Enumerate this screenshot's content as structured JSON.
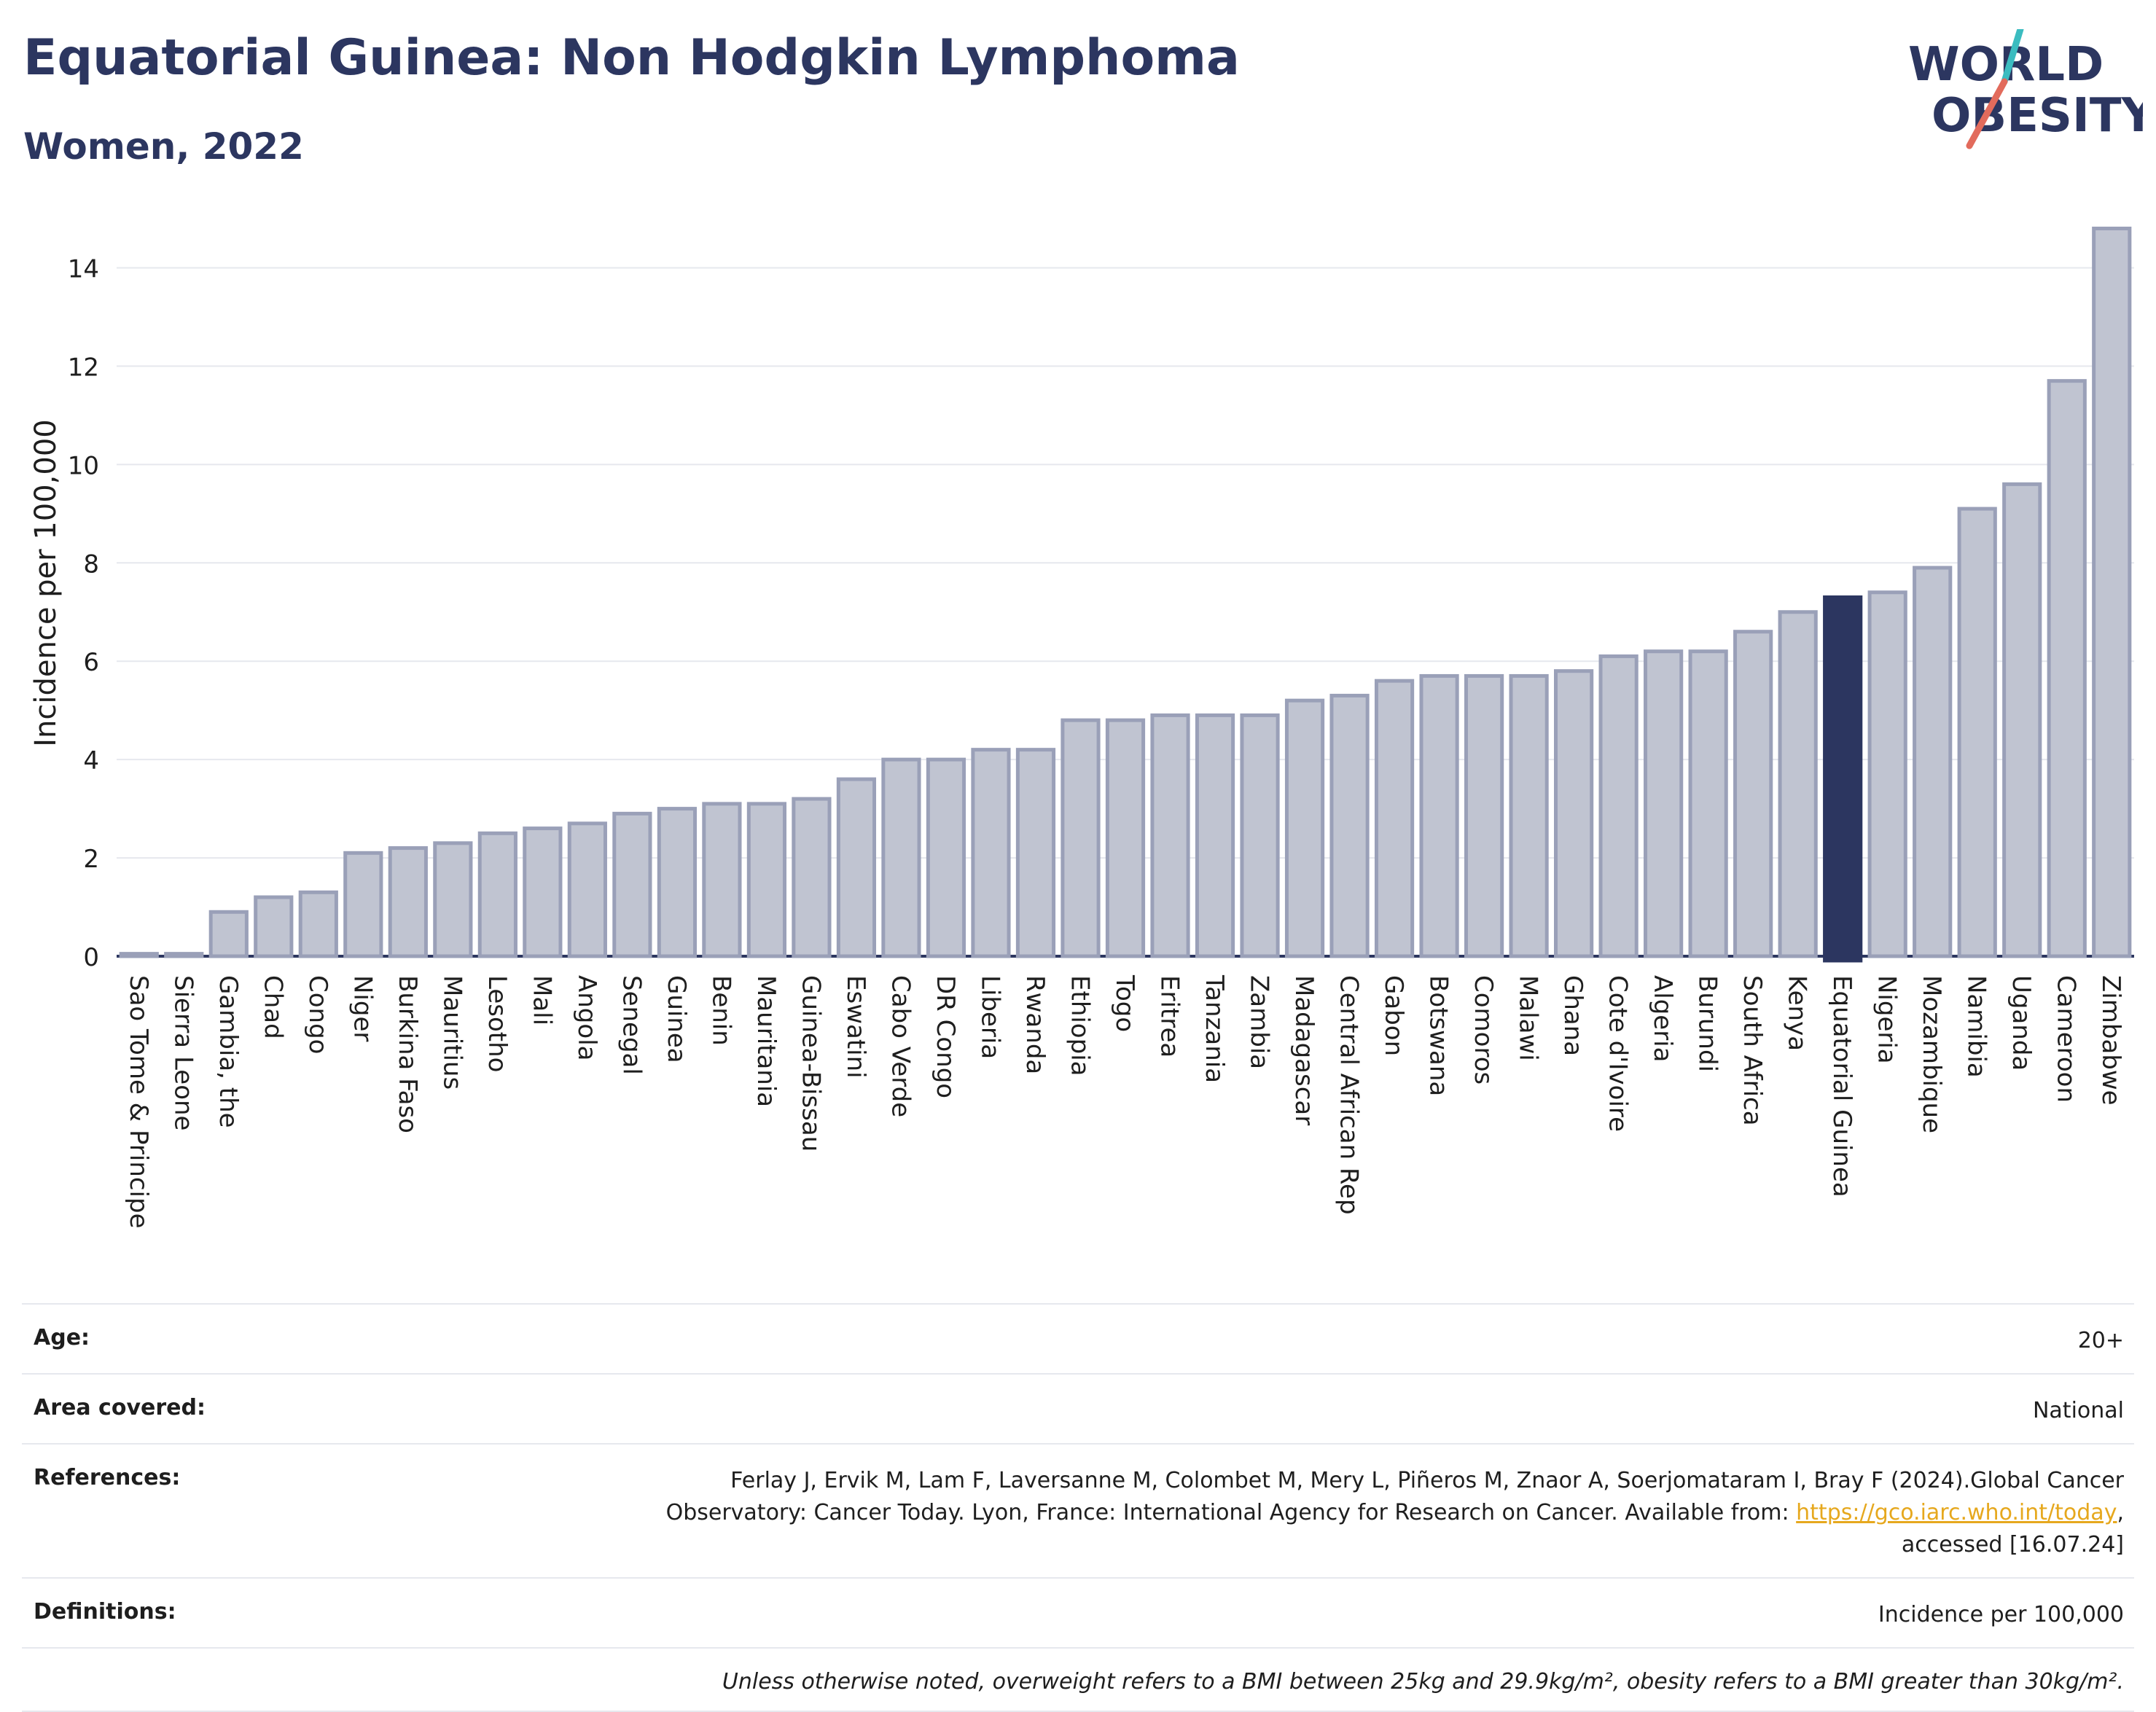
{
  "header": {
    "title": "Equatorial Guinea: Non Hodgkin Lymphoma",
    "subtitle": "Women, 2022"
  },
  "logo": {
    "line1": "WORLD",
    "line2": "OBESITY"
  },
  "chart_data": {
    "type": "bar",
    "ylabel": "Incidence per 100,000",
    "ylim": [
      0,
      15
    ],
    "yticks": [
      0,
      2,
      4,
      6,
      8,
      10,
      12,
      14
    ],
    "grid": true,
    "highlight": "Equatorial Guinea",
    "categories": [
      "Sao Tome & Principe",
      "Sierra Leone",
      "Gambia, the",
      "Chad",
      "Congo",
      "Niger",
      "Burkina Faso",
      "Mauritius",
      "Lesotho",
      "Mali",
      "Angola",
      "Senegal",
      "Guinea",
      "Benin",
      "Mauritania",
      "Guinea-Bissau",
      "Eswatini",
      "Cabo Verde",
      "DR Congo",
      "Liberia",
      "Rwanda",
      "Ethiopia",
      "Togo",
      "Eritrea",
      "Tanzania",
      "Zambia",
      "Madagascar",
      "Central African Rep",
      "Gabon",
      "Botswana",
      "Comoros",
      "Malawi",
      "Ghana",
      "Cote d'Ivoire",
      "Algeria",
      "Burundi",
      "South Africa",
      "Kenya",
      "Equatorial Guinea",
      "Nigeria",
      "Mozambique",
      "Namibia",
      "Uganda",
      "Cameroon",
      "Zimbabwe"
    ],
    "values": [
      0.05,
      0.05,
      0.9,
      1.2,
      1.3,
      2.1,
      2.2,
      2.3,
      2.5,
      2.6,
      2.7,
      2.9,
      3.0,
      3.1,
      3.1,
      3.2,
      3.6,
      4.0,
      4.0,
      4.2,
      4.2,
      4.8,
      4.8,
      4.9,
      4.9,
      4.9,
      5.2,
      5.3,
      5.6,
      5.7,
      5.7,
      5.7,
      5.8,
      6.1,
      6.2,
      6.2,
      6.6,
      7.0,
      7.3,
      7.4,
      7.9,
      9.1,
      9.6,
      11.7,
      14.8
    ]
  },
  "colors": {
    "bar": "#c0c4d1",
    "bar_edge": "#9aa0b8",
    "highlight": "#2c3660",
    "title": "#2c3660",
    "logo_teal": "#3bbcc0",
    "logo_coral": "#e26b5c"
  },
  "meta": {
    "age_label": "Age:",
    "age_value": "20+",
    "area_label": "Area covered:",
    "area_value": "National",
    "ref_label": "References:",
    "ref_text1": "Ferlay J, Ervik M, Lam F, Laversanne M, Colombet M, Mery L, Piñeros M, Znaor A, Soerjomataram I, Bray F (2024).Global Cancer",
    "ref_text2": "Observatory: Cancer Today. Lyon, France: International Agency for Research on Cancer. Available from: ",
    "ref_link": "https://gco.iarc.who.int/today",
    "ref_text3": "accessed [16.07.24]",
    "def_label": "Definitions:",
    "def_value": "Incidence per 100,000",
    "note": "Unless otherwise noted, overweight refers to a BMI between 25kg and 29.9kg/m², obesity refers to a BMI greater than 30kg/m²."
  }
}
